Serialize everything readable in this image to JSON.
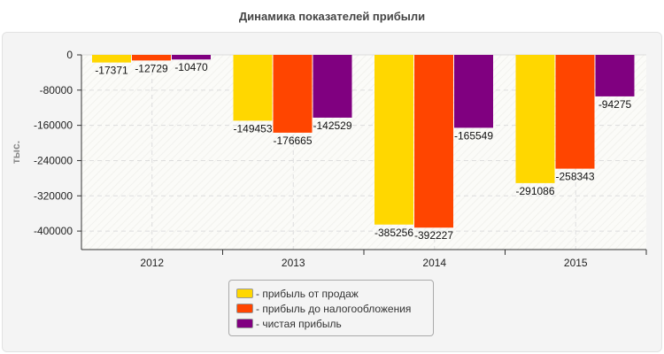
{
  "chart_data": {
    "type": "bar",
    "title": "Динамика показателей прибыли",
    "ylabel": "тыс.",
    "xlabel": "",
    "categories": [
      "2012",
      "2013",
      "2014",
      "2015"
    ],
    "ylim": [
      -442000,
      0
    ],
    "yticks": [
      0,
      -80000,
      -160000,
      -240000,
      -320000,
      -400000
    ],
    "grid": true,
    "legend_position": "bottom",
    "series": [
      {
        "name": "- прибыль от продаж",
        "color": "#ffd700",
        "values": [
          -17371,
          -149453,
          -385256,
          -291086
        ]
      },
      {
        "name": "- прибыль до налогообложения",
        "color": "#ff4500",
        "values": [
          -12729,
          -176665,
          -392227,
          -258343
        ]
      },
      {
        "name": "- чистая прибыль",
        "color": "#800080",
        "values": [
          -10470,
          -142529,
          -165549,
          -94275
        ]
      }
    ]
  }
}
